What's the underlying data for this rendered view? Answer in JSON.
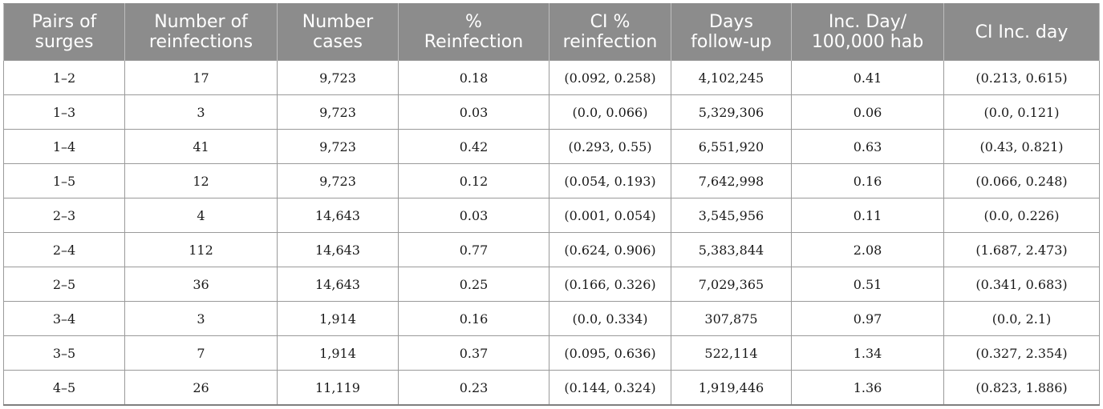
{
  "table": {
    "headers": [
      "Pairs of\nsurges",
      "Number of\nreinfections",
      "Number\ncases",
      "%\nReinfection",
      "CI %\nreinfection",
      "Days\nfollow-up",
      "Inc. Day/\n100,000 hab",
      "CI Inc. day"
    ],
    "rows": [
      [
        "1–2",
        "17",
        "9,723",
        "0.18",
        "(0.092, 0.258)",
        "4,102,245",
        "0.41",
        "(0.213, 0.615)"
      ],
      [
        "1–3",
        "3",
        "9,723",
        "0.03",
        "(0.0, 0.066)",
        "5,329,306",
        "0.06",
        "(0.0, 0.121)"
      ],
      [
        "1–4",
        "41",
        "9,723",
        "0.42",
        "(0.293, 0.55)",
        "6,551,920",
        "0.63",
        "(0.43, 0.821)"
      ],
      [
        "1–5",
        "12",
        "9,723",
        "0.12",
        "(0.054, 0.193)",
        "7,642,998",
        "0.16",
        "(0.066, 0.248)"
      ],
      [
        "2–3",
        "4",
        "14,643",
        "0.03",
        "(0.001, 0.054)",
        "3,545,956",
        "0.11",
        "(0.0, 0.226)"
      ],
      [
        "2–4",
        "112",
        "14,643",
        "0.77",
        "(0.624, 0.906)",
        "5,383,844",
        "2.08",
        "(1.687, 2.473)"
      ],
      [
        "2–5",
        "36",
        "14,643",
        "0.25",
        "(0.166, 0.326)",
        "7,029,365",
        "0.51",
        "(0.341, 0.683)"
      ],
      [
        "3–4",
        "3",
        "1,914",
        "0.16",
        "(0.0, 0.334)",
        "307,875",
        "0.97",
        "(0.0, 2.1)"
      ],
      [
        "3–5",
        "7",
        "1,914",
        "0.37",
        "(0.095, 0.636)",
        "522,114",
        "1.34",
        "(0.327, 2.354)"
      ],
      [
        "4–5",
        "26",
        "11,119",
        "0.23",
        "(0.144, 0.324)",
        "1,919,446",
        "1.36",
        "(0.823, 1.886)"
      ]
    ]
  }
}
